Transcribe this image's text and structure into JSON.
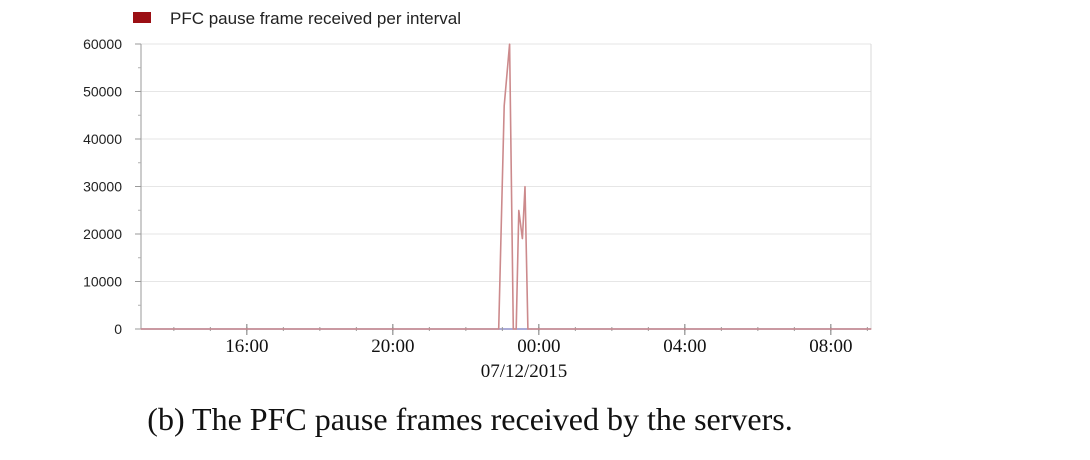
{
  "chart_data": {
    "type": "line",
    "legend": {
      "label": "PFC pause frame received per interval",
      "swatch_color": "#9b0f14",
      "placement": "top-left"
    },
    "line_color": "#cc8a8c",
    "baseline_color": "#8f8fc8",
    "ylim": [
      0,
      60000
    ],
    "yticks": [
      0,
      10000,
      20000,
      30000,
      40000,
      50000,
      60000
    ],
    "ytick_labels": [
      "0",
      "10000",
      "20000",
      "30000",
      "40000",
      "50000",
      "60000"
    ],
    "xlim_hours": [
      13.1,
      33.1
    ],
    "xticks_hours": [
      16,
      20,
      24,
      28,
      32
    ],
    "xtick_labels": [
      "16:00",
      "20:00",
      "00:00",
      "04:00",
      "08:00"
    ],
    "date_label": "07/12/2015",
    "grid": true,
    "series": [
      {
        "x_hours": [
          13.1,
          22.9,
          23.05,
          23.2,
          23.3,
          23.38,
          23.45,
          23.55,
          23.62,
          23.7,
          23.8,
          33.1
        ],
        "values": [
          0,
          0,
          47000,
          60000,
          0,
          0,
          25000,
          19000,
          30000,
          0,
          0,
          0
        ]
      }
    ]
  },
  "caption": "(b) The PFC pause frames received by the servers."
}
